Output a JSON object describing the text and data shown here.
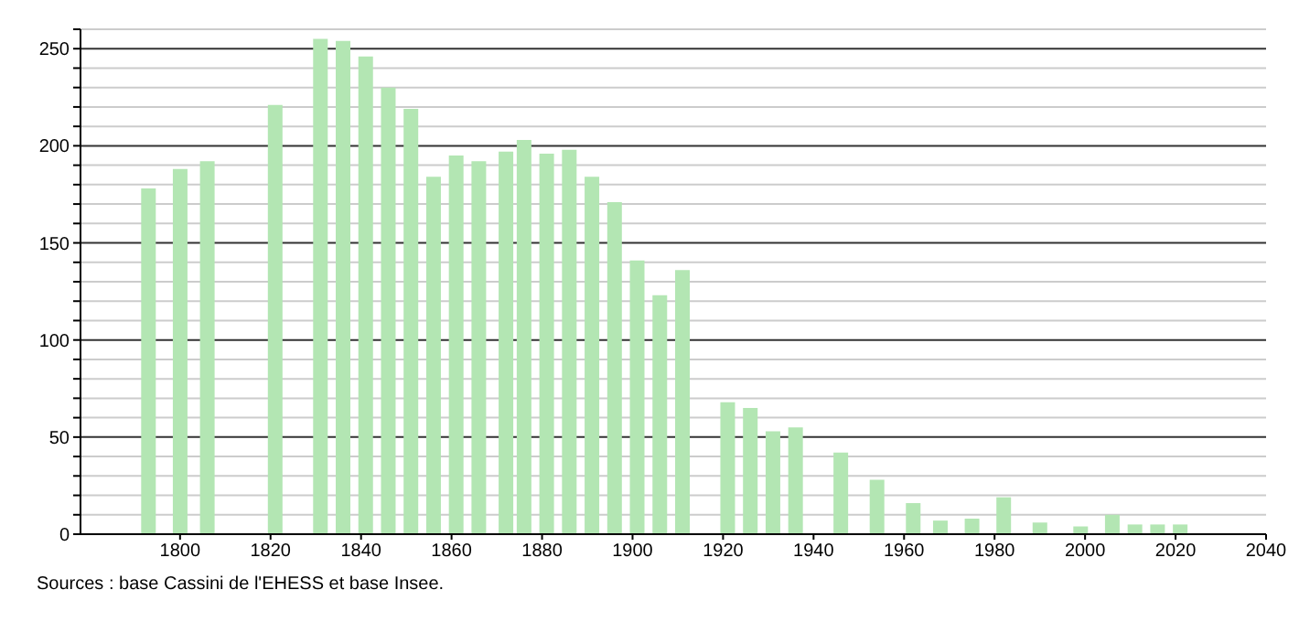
{
  "chart_data": {
    "type": "bar",
    "x": [
      1793,
      1800,
      1806,
      1821,
      1831,
      1836,
      1841,
      1846,
      1851,
      1856,
      1861,
      1866,
      1872,
      1876,
      1881,
      1886,
      1891,
      1896,
      1901,
      1906,
      1911,
      1921,
      1926,
      1931,
      1936,
      1946,
      1954,
      1962,
      1968,
      1975,
      1982,
      1990,
      1999,
      2006,
      2011,
      2016,
      2021
    ],
    "values": [
      178,
      188,
      192,
      221,
      255,
      254,
      246,
      230,
      219,
      184,
      195,
      192,
      197,
      203,
      196,
      198,
      184,
      171,
      141,
      123,
      136,
      68,
      65,
      53,
      55,
      42,
      28,
      16,
      7,
      8,
      19,
      6,
      4,
      10,
      5,
      5,
      5
    ],
    "color": "#b3e6b3",
    "xlim": [
      1778,
      2040
    ],
    "xticks": [
      1800,
      1820,
      1840,
      1860,
      1880,
      1900,
      1920,
      1940,
      1960,
      1980,
      2000,
      2020,
      2040
    ],
    "ylim": [
      0,
      260
    ],
    "yticks": [
      0,
      {
        "value": 10,
        "label": null
      },
      {
        "value": 20,
        "label": null
      },
      {
        "value": 30,
        "label": null
      },
      {
        "value": 40,
        "label": null
      },
      50,
      {
        "value": 60,
        "label": null
      },
      {
        "value": 70,
        "label": null
      },
      {
        "value": 80,
        "label": null
      },
      {
        "value": 90,
        "label": null
      },
      100,
      {
        "value": 110,
        "label": null
      },
      {
        "value": 120,
        "label": null
      },
      {
        "value": 130,
        "label": null
      },
      {
        "value": 140,
        "label": null
      },
      150,
      {
        "value": 160,
        "label": null
      },
      {
        "value": 170,
        "label": null
      },
      {
        "value": 180,
        "label": null
      },
      {
        "value": 190,
        "label": null
      },
      200,
      {
        "value": 210,
        "label": null
      },
      {
        "value": 220,
        "label": null
      },
      {
        "value": 230,
        "label": null
      },
      {
        "value": 240,
        "label": null
      },
      250,
      {
        "value": 260,
        "label": null
      }
    ],
    "grid": "y",
    "annotations": [
      "Sources : base Cassini de l'EHESS et base Insee."
    ]
  }
}
